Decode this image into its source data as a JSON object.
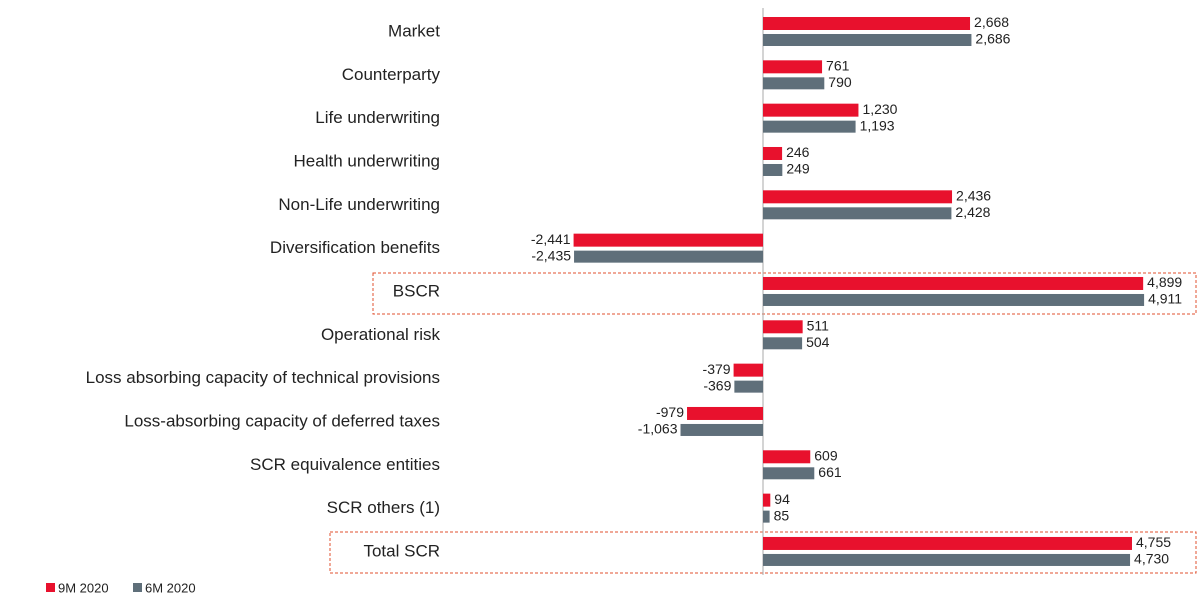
{
  "chart_data": {
    "type": "bar",
    "orientation": "horizontal",
    "categories": [
      "Market",
      "Counterparty",
      "Life underwriting",
      "Health underwriting",
      "Non-Life underwriting",
      "Diversification benefits",
      "BSCR",
      "Operational risk",
      "Loss absorbing capacity of technical provisions",
      "Loss-absorbing capacity of deferred taxes",
      "SCR equivalence entities",
      "SCR others (1)",
      "Total SCR"
    ],
    "series": [
      {
        "name": "9M 2020",
        "color": "#e8112d",
        "values": [
          2668,
          761,
          1230,
          246,
          2436,
          -2441,
          4899,
          511,
          -379,
          -979,
          609,
          94,
          4755
        ],
        "value_labels": [
          "2,668",
          "761",
          "1,230",
          "246",
          "2,436",
          "-2,441",
          "4,899",
          "511",
          "-379",
          "-979",
          "609",
          "94",
          "4,755"
        ]
      },
      {
        "name": "6M 2020",
        "color": "#5f6f7a",
        "values": [
          2686,
          790,
          1193,
          249,
          2428,
          -2435,
          4911,
          504,
          -369,
          -1063,
          661,
          85,
          4730
        ],
        "value_labels": [
          "2,686",
          "790",
          "1,193",
          "249",
          "2,428",
          "-2,435",
          "4,911",
          "504",
          "-369",
          "-1,063",
          "661",
          "85",
          "4,730"
        ]
      }
    ],
    "legend": "bottom-left"
  }
}
